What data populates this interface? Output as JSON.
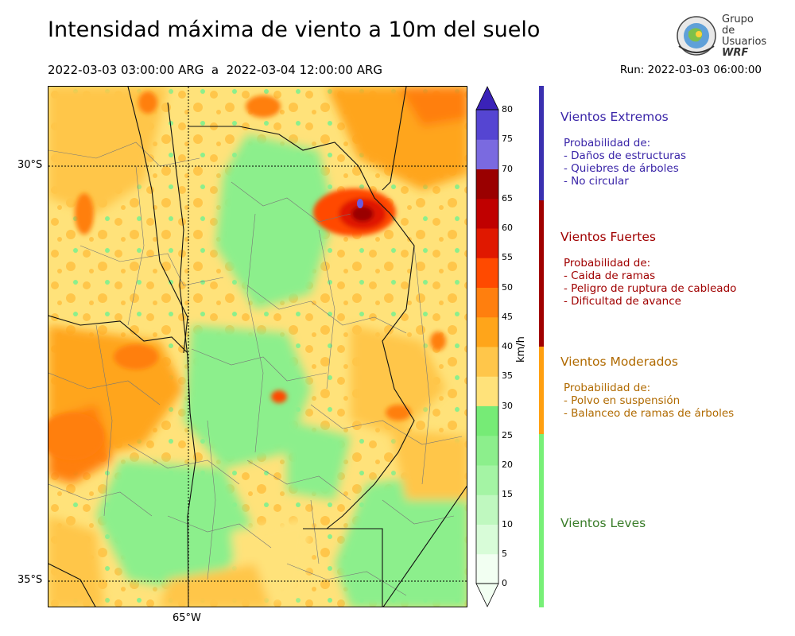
{
  "header": {
    "title": "Intensidad máxima de viento a 10m del suelo",
    "period": "2022-03-03 03:00:00 ARG  a  2022-03-04 12:00:00 ARG",
    "run": "Run: 2022-03-03 06:00:00"
  },
  "logo": {
    "line1": "Grupo de",
    "line2": "Usuarios",
    "line3": "WRF"
  },
  "map": {
    "lat_labels": [
      "30°S",
      "35°S"
    ],
    "lon_labels": [
      "65°W"
    ]
  },
  "colorbar": {
    "unit": "km/h",
    "ticks": [
      "0",
      "5",
      "10",
      "15",
      "20",
      "25",
      "30",
      "35",
      "40",
      "45",
      "50",
      "55",
      "60",
      "65",
      "70",
      "75",
      "80"
    ],
    "colors": [
      "#f2fff2",
      "#d8fcd8",
      "#bff8bf",
      "#a4f4a4",
      "#8cef8c",
      "#76eb76",
      "#ffe27a",
      "#ffc64a",
      "#ffa51a",
      "#ff7f0e",
      "#ff4a00",
      "#e01800",
      "#c00000",
      "#9a0000",
      "#7a6ae0",
      "#5545d2",
      "#3a22b8"
    ]
  },
  "categories": [
    {
      "title": "Vientos Extremos",
      "color": "#3a25a8",
      "desc": [
        "Probabilidad de:",
        "- Daños de estructuras",
        "- Quiebres de árboles",
        "- No circular"
      ]
    },
    {
      "title": "Vientos Fuertes",
      "color": "#a00000",
      "desc": [
        "Probabilidad de:",
        "- Caida de ramas",
        "- Peligro de ruptura de cableado",
        "- Dificultad de avance"
      ]
    },
    {
      "title": "Vientos Moderados",
      "color": "#b06a00",
      "desc": [
        "Probabilidad de:",
        "- Polvo en suspensión",
        "- Balanceo de ramas de árboles"
      ]
    },
    {
      "title": "Vientos Leves",
      "color": "#3a7d2a",
      "desc": []
    }
  ],
  "sidebar_colors": {
    "extremos": "#3a30b0",
    "fuertes": "#a00000",
    "moderados": "#ff9f10",
    "leves": "#78f078"
  }
}
